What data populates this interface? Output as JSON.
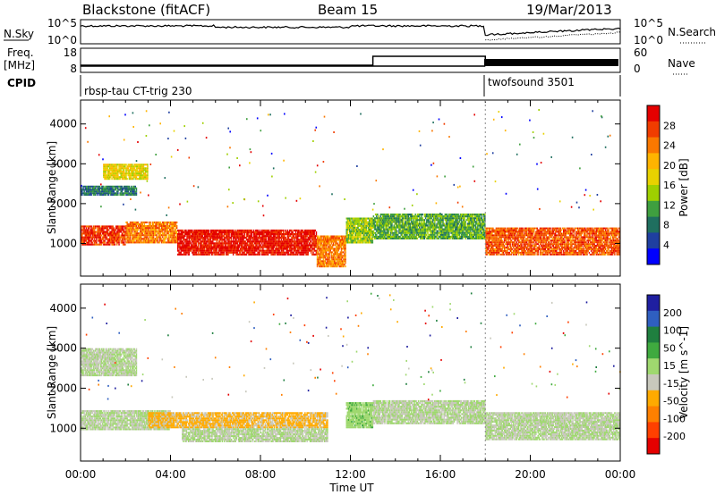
{
  "header": {
    "title": "Blackstone (fitACF)",
    "beam": "Beam 15",
    "date": "19/Mar/2013"
  },
  "top_panels": {
    "nsky_label": "N.Sky",
    "nsky_ticks": [
      "10^5",
      "10^0"
    ],
    "nsearch_label": "N.Search",
    "nsearch_ticks": [
      "10^5",
      "10^0"
    ],
    "freq_label": "Freq.",
    "freq_unit": "[MHz]",
    "freq_ticks": [
      "18",
      "8"
    ],
    "nave_label": "Nave",
    "nave_ticks": [
      "60",
      "0"
    ],
    "cpid_label": "CPID",
    "cpid_segments": [
      "rbsp-tau CT-trig 230",
      "twofsound 3501"
    ]
  },
  "axes": {
    "ylabel": "Slant Range [km]",
    "xlabel": "Time UT",
    "y_ticks": [
      "4000",
      "3000",
      "2000",
      "1000"
    ],
    "x_ticks": [
      "00:00",
      "04:00",
      "08:00",
      "12:00",
      "16:00",
      "20:00",
      "00:00"
    ]
  },
  "power_colorbar": {
    "label": "Power [dB]",
    "ticks": [
      "28",
      "24",
      "20",
      "16",
      "12",
      "8",
      "4"
    ],
    "colors": [
      "#e40000",
      "#f03c00",
      "#fa7800",
      "#ffb400",
      "#e8d200",
      "#9fd000",
      "#3f9f3f",
      "#1f6f5f",
      "#1f3fa0",
      "#0000ff"
    ]
  },
  "velocity_colorbar": {
    "label": "Velocity [m s^-1]",
    "ticks": [
      "200",
      "100",
      "50",
      "15",
      "-15",
      "-50",
      "-100",
      "-200"
    ],
    "colors": [
      "#1f1fa0",
      "#2f5fc0",
      "#1f7f3f",
      "#3faa3f",
      "#9fd86f",
      "#c8c8bc",
      "#ffaa00",
      "#ff8000",
      "#ff4000",
      "#e40000"
    ]
  },
  "chart_data": [
    {
      "type": "heatmap",
      "title": "Power",
      "xlabel": "Time UT",
      "ylabel": "Slant Range [km]",
      "x_range_hours": [
        0,
        24
      ],
      "ylim": [
        180,
        4600
      ],
      "colorbar": {
        "label": "Power [dB]",
        "range": [
          0,
          32
        ]
      },
      "bands": [
        {
          "t0": 0.0,
          "t1": 2.0,
          "r0": 950,
          "r1": 1450,
          "value": 28
        },
        {
          "t0": 2.0,
          "t1": 4.3,
          "r0": 1000,
          "r1": 1550,
          "value": 24
        },
        {
          "t0": 4.3,
          "t1": 10.5,
          "r0": 700,
          "r1": 1350,
          "value": 30
        },
        {
          "t0": 10.5,
          "t1": 11.8,
          "r0": 400,
          "r1": 1200,
          "value": 24
        },
        {
          "t0": 11.8,
          "t1": 13.0,
          "r0": 1000,
          "r1": 1650,
          "value": 14
        },
        {
          "t0": 13.0,
          "t1": 18.0,
          "r0": 1100,
          "r1": 1750,
          "value": 12
        },
        {
          "t0": 18.0,
          "t1": 24.0,
          "r0": 700,
          "r1": 1400,
          "value": 26
        },
        {
          "t0": 0.0,
          "t1": 2.5,
          "r0": 2200,
          "r1": 2450,
          "value": 8
        },
        {
          "t0": 1.0,
          "t1": 3.0,
          "r0": 2600,
          "r1": 3000,
          "value": 18
        }
      ]
    },
    {
      "type": "heatmap",
      "title": "Velocity",
      "xlabel": "Time UT",
      "ylabel": "Slant Range [km]",
      "x_range_hours": [
        0,
        24
      ],
      "ylim": [
        180,
        4600
      ],
      "colorbar": {
        "label": "Velocity [m s^-1]",
        "range": [
          -250,
          250
        ]
      },
      "bands": [
        {
          "t0": 0.0,
          "t1": 4.0,
          "r0": 950,
          "r1": 1450,
          "value": 0
        },
        {
          "t0": 0.0,
          "t1": 2.5,
          "r0": 2300,
          "r1": 3000,
          "value": 0
        },
        {
          "t0": 3.0,
          "t1": 11.0,
          "r0": 1000,
          "r1": 1400,
          "value": -60
        },
        {
          "t0": 4.5,
          "t1": 11.0,
          "r0": 650,
          "r1": 1000,
          "value": 0
        },
        {
          "t0": 11.8,
          "t1": 13.0,
          "r0": 1000,
          "r1": 1650,
          "value": 30
        },
        {
          "t0": 13.0,
          "t1": 18.0,
          "r0": 1100,
          "r1": 1700,
          "value": 0
        },
        {
          "t0": 18.0,
          "t1": 24.0,
          "r0": 700,
          "r1": 1400,
          "value": 0
        }
      ]
    }
  ]
}
